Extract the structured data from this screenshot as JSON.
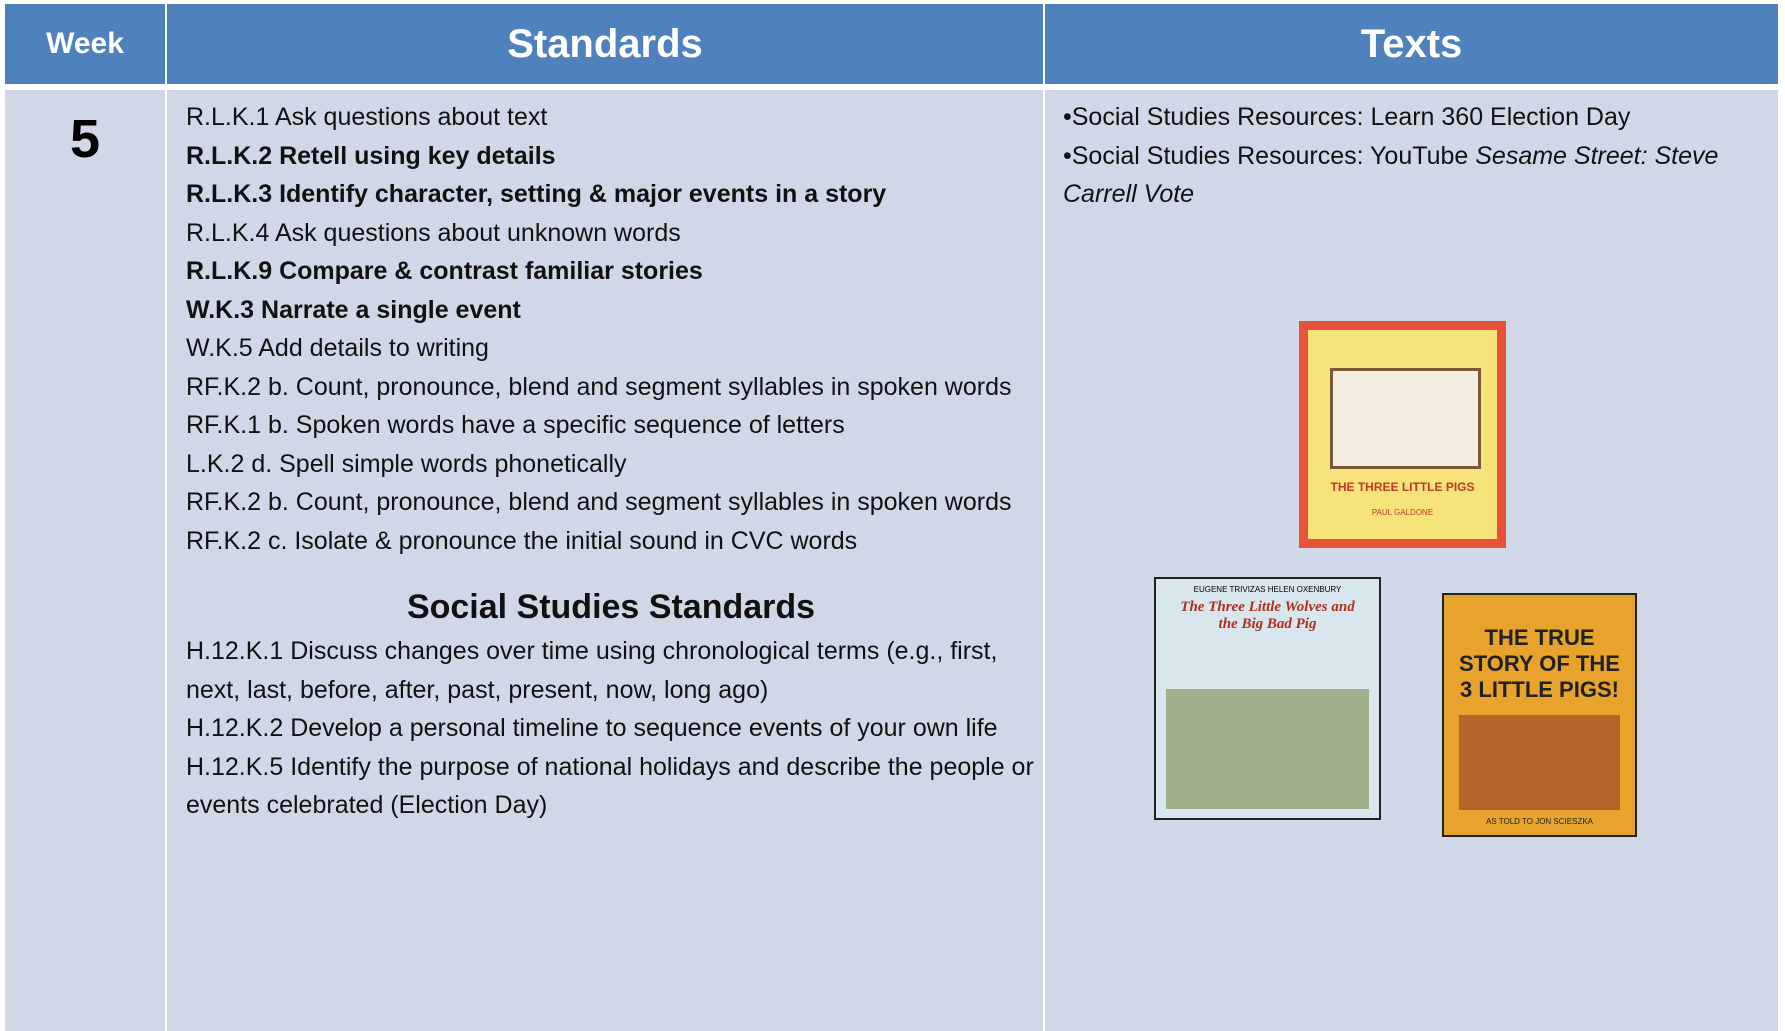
{
  "header": {
    "week": "Week",
    "standards": "Standards",
    "texts": "Texts"
  },
  "row": {
    "week": "5",
    "standards": [
      {
        "text": "R.L.K.1 Ask questions about text",
        "bold": false
      },
      {
        "text": "R.L.K.2 Retell using key details",
        "bold": true
      },
      {
        "text": "R.L.K.3 Identify character, setting   & major events in a story",
        "bold": true
      },
      {
        "text": "R.L.K.4 Ask questions about unknown words",
        "bold": false
      },
      {
        "text": "R.L.K.9 Compare & contrast familiar stories",
        "bold": true
      },
      {
        "text": "W.K.3 Narrate a single event",
        "bold": true
      },
      {
        "text": "W.K.5 Add details to writing",
        "bold": false
      },
      {
        "text": "RF.K.2 b. Count, pronounce, blend and segment syllables in spoken words",
        "bold": false
      },
      {
        "text": "RF.K.1 b. Spoken words have a specific sequence of letters",
        "bold": false
      },
      {
        "text": "L.K.2 d. Spell simple words phonetically",
        "bold": false
      },
      {
        "text": "RF.K.2 b. Count, pronounce, blend and segment syllables in spoken words",
        "bold": false
      },
      {
        "text": "RF.K.2 c. Isolate &  pronounce the initial sound in CVC words",
        "bold": false
      }
    ],
    "social_studies_title": "Social Studies Standards",
    "social_studies": [
      "H.12.K.1  Discuss changes over time using chronological terms (e.g., first, next, last, before, after, past, present, now, long ago)",
      "H.12.K.2 Develop a personal timeline to sequence events of your own life",
      " H.12.K.5 Identify the purpose of national holidays and describe the people or events celebrated (Election Day)"
    ],
    "texts": [
      {
        "text": "•Social Studies Resources: Learn 360 Election Day",
        "italic": ""
      },
      {
        "text": "•Social Studies Resources: YouTube ",
        "italic": "Sesame Street: Steve Carrell Vote"
      }
    ],
    "books": [
      {
        "title": "THE THREE LITTLE PIGS",
        "author": "PAUL GALDONE"
      },
      {
        "title": "The Three Little Wolves and the Big Bad Pig",
        "author": "EUGENE TRIVIZAS  HELEN OXENBURY"
      },
      {
        "title": "THE TRUE STORY OF THE 3 LITTLE PIGS!",
        "author": "AS TOLD TO JON SCIESZKA"
      }
    ]
  }
}
